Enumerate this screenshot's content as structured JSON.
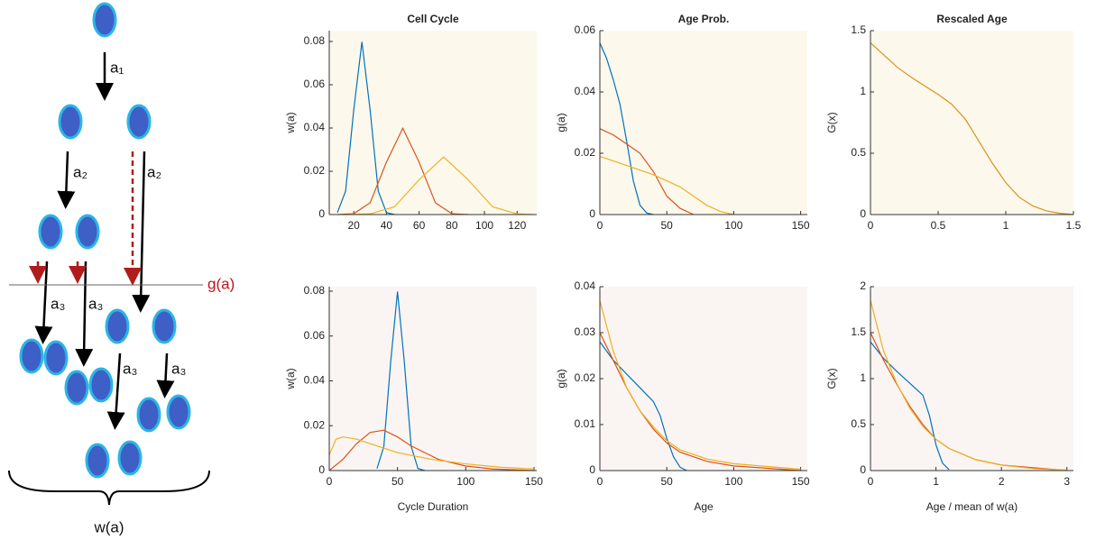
{
  "diagram": {
    "labels": [
      "a₁",
      "a₂",
      "a₂",
      "a₃",
      "a₃",
      "a₃",
      "a₃",
      "g(a)",
      "w(a)"
    ]
  },
  "chart_data": [
    {
      "type": "line",
      "title": "Cell Cycle",
      "ylabel": "w(a)",
      "background": "#fdf8ec",
      "xlim": [
        5,
        132
      ],
      "xticks": [
        20,
        40,
        60,
        80,
        100,
        120
      ],
      "ylim": [
        0,
        0.085
      ],
      "yticks": [
        0,
        0.02,
        0.04,
        0.06,
        0.08
      ],
      "series": [
        {
          "color": "#0072bd",
          "x": [
            10,
            15,
            20,
            25,
            30,
            35,
            40,
            45
          ],
          "values": [
            0.0009,
            0.0108,
            0.0484,
            0.0798,
            0.0484,
            0.0108,
            0.0009,
            0
          ]
        },
        {
          "color": "#d95319",
          "x": [
            10,
            20,
            30,
            40,
            50,
            60,
            70,
            80,
            90
          ],
          "values": [
            0,
            0.0004,
            0.0054,
            0.0242,
            0.0399,
            0.0242,
            0.0054,
            0.0004,
            0
          ]
        },
        {
          "color": "#edb120",
          "x": [
            15,
            30,
            45,
            60,
            75,
            90,
            105,
            120,
            130
          ],
          "values": [
            0,
            0.0003,
            0.0036,
            0.0161,
            0.0266,
            0.0161,
            0.0036,
            0.0003,
            0
          ]
        }
      ]
    },
    {
      "type": "line",
      "title": "Age Prob.",
      "ylabel": "g(a)",
      "background": "#fdf8ec",
      "xlim": [
        0,
        155
      ],
      "xticks": [
        0,
        50,
        100,
        150
      ],
      "ylim": [
        0,
        0.06
      ],
      "yticks": [
        0,
        0.02,
        0.04,
        0.06
      ],
      "series": [
        {
          "color": "#0072bd",
          "x": [
            0,
            5,
            10,
            15,
            20,
            25,
            30,
            35,
            40
          ],
          "values": [
            0.056,
            0.051,
            0.044,
            0.036,
            0.024,
            0.011,
            0.003,
            0.0005,
            0
          ]
        },
        {
          "color": "#d95319",
          "x": [
            0,
            10,
            20,
            30,
            40,
            50,
            60,
            70
          ],
          "values": [
            0.028,
            0.026,
            0.023,
            0.02,
            0.014,
            0.006,
            0.002,
            0
          ]
        },
        {
          "color": "#edb120",
          "x": [
            0,
            20,
            40,
            60,
            70,
            80,
            90,
            100
          ],
          "values": [
            0.019,
            0.016,
            0.013,
            0.009,
            0.006,
            0.003,
            0.001,
            0
          ]
        }
      ]
    },
    {
      "type": "line",
      "title": "Rescaled Age",
      "ylabel": "G(x)",
      "background": "#fdf8ec",
      "xlim": [
        0,
        1.5
      ],
      "xticks": [
        0,
        0.5,
        1,
        1.5
      ],
      "ylim": [
        0,
        1.5
      ],
      "yticks": [
        0,
        0.5,
        1,
        1.5
      ],
      "series": [
        {
          "color": "#d9921a",
          "x": [
            0,
            0.1,
            0.2,
            0.3,
            0.4,
            0.5,
            0.6,
            0.7,
            0.8,
            0.9,
            1.0,
            1.1,
            1.2,
            1.3,
            1.4,
            1.5
          ],
          "values": [
            1.4,
            1.3,
            1.2,
            1.12,
            1.05,
            0.98,
            0.9,
            0.78,
            0.6,
            0.42,
            0.26,
            0.14,
            0.07,
            0.03,
            0.01,
            0
          ]
        }
      ]
    },
    {
      "type": "line",
      "xlabel": "Cycle Duration",
      "ylabel": "w(a)",
      "background": "#faf5f3",
      "xlim": [
        0,
        152
      ],
      "xticks": [
        0,
        50,
        100,
        150
      ],
      "ylim": [
        0,
        0.082
      ],
      "yticks": [
        0,
        0.02,
        0.04,
        0.06,
        0.08
      ],
      "series": [
        {
          "color": "#0072bd",
          "x": [
            35,
            40,
            45,
            50,
            55,
            60,
            65,
            70
          ],
          "values": [
            0.0009,
            0.0108,
            0.0484,
            0.0798,
            0.0484,
            0.0108,
            0.0009,
            0
          ]
        },
        {
          "color": "#d95319",
          "x": [
            0,
            10,
            20,
            30,
            40,
            50,
            60,
            80,
            100,
            120,
            150
          ],
          "values": [
            0,
            0.005,
            0.012,
            0.017,
            0.018,
            0.015,
            0.011,
            0.005,
            0.002,
            0.0007,
            0
          ]
        },
        {
          "color": "#edb120",
          "x": [
            0,
            5,
            10,
            20,
            30,
            50,
            75,
            100,
            125,
            150
          ],
          "values": [
            0.007,
            0.014,
            0.015,
            0.014,
            0.012,
            0.008,
            0.005,
            0.003,
            0.0015,
            0.0007
          ]
        }
      ]
    },
    {
      "type": "line",
      "xlabel": "Age",
      "ylabel": "g(a)",
      "background": "#faf5f3",
      "xlim": [
        0,
        155
      ],
      "xticks": [
        0,
        50,
        100,
        150
      ],
      "ylim": [
        0,
        0.04
      ],
      "yticks": [
        0,
        0.01,
        0.02,
        0.03,
        0.04
      ],
      "series": [
        {
          "color": "#0072bd",
          "x": [
            0,
            10,
            20,
            30,
            40,
            45,
            50,
            55,
            60,
            65
          ],
          "values": [
            0.028,
            0.024,
            0.021,
            0.018,
            0.015,
            0.012,
            0.007,
            0.003,
            0.0007,
            0
          ]
        },
        {
          "color": "#d95319",
          "x": [
            0,
            10,
            20,
            30,
            40,
            50,
            60,
            80,
            100,
            150
          ],
          "values": [
            0.03,
            0.024,
            0.018,
            0.013,
            0.009,
            0.006,
            0.004,
            0.002,
            0.001,
            0
          ]
        },
        {
          "color": "#edb120",
          "x": [
            0,
            10,
            20,
            30,
            40,
            50,
            60,
            80,
            100,
            150
          ],
          "values": [
            0.037,
            0.026,
            0.018,
            0.013,
            0.0095,
            0.0065,
            0.0045,
            0.0025,
            0.0015,
            0.0003
          ]
        }
      ]
    },
    {
      "type": "line",
      "xlabel": "Age / mean of w(a)",
      "ylabel": "G(x)",
      "background": "#faf5f3",
      "xlim": [
        0,
        3.1
      ],
      "xticks": [
        0,
        1,
        2,
        3
      ],
      "ylim": [
        0,
        2
      ],
      "yticks": [
        0,
        0.5,
        1,
        1.5,
        2
      ],
      "series": [
        {
          "color": "#0072bd",
          "x": [
            0,
            0.2,
            0.4,
            0.6,
            0.8,
            0.9,
            1.0,
            1.1,
            1.2
          ],
          "values": [
            1.4,
            1.22,
            1.08,
            0.95,
            0.82,
            0.6,
            0.28,
            0.08,
            0.01
          ]
        },
        {
          "color": "#d95319",
          "x": [
            0,
            0.2,
            0.4,
            0.6,
            0.8,
            1,
            1.2,
            1.6,
            2,
            3
          ],
          "values": [
            1.5,
            1.2,
            0.94,
            0.7,
            0.5,
            0.34,
            0.24,
            0.12,
            0.06,
            0
          ]
        },
        {
          "color": "#edb120",
          "x": [
            0,
            0.2,
            0.4,
            0.6,
            0.8,
            1,
            1.2,
            1.6,
            2,
            2.5,
            3
          ],
          "values": [
            1.85,
            1.3,
            0.95,
            0.68,
            0.48,
            0.34,
            0.24,
            0.12,
            0.06,
            0.02,
            0.005
          ]
        }
      ]
    }
  ]
}
